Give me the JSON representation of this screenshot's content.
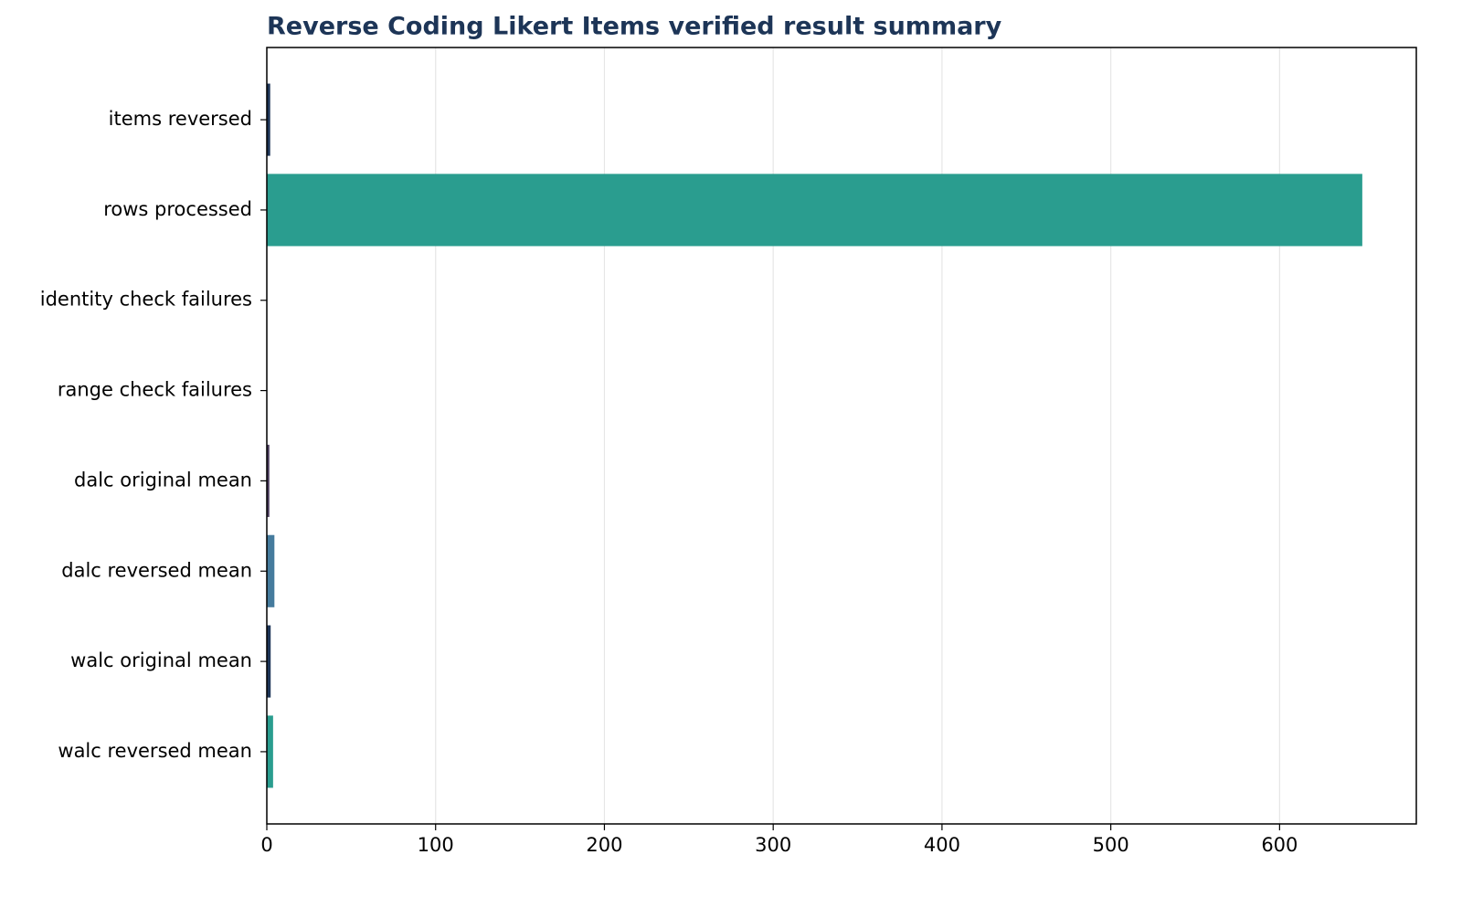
{
  "chart_data": {
    "type": "barh",
    "title": "Reverse Coding Likert Items verified result summary",
    "categories": [
      "items reversed",
      "rows processed",
      "identity check failures",
      "range check failures",
      "dalc original mean",
      "dalc reversed mean",
      "walc original mean",
      "walc reversed mean"
    ],
    "values": [
      2,
      649,
      0,
      0,
      1.5,
      4.5,
      2.28,
      3.72
    ],
    "colors": [
      "#1d3557",
      "#2a9d8f",
      "#2a9d8f",
      "#2a9d8f",
      "#4a3b5c",
      "#457b9d",
      "#1d3557",
      "#2a9d8f"
    ],
    "xlim": [
      0,
      681
    ],
    "xticks": [
      0,
      100,
      200,
      300,
      400,
      500,
      600
    ],
    "grid": true
  }
}
